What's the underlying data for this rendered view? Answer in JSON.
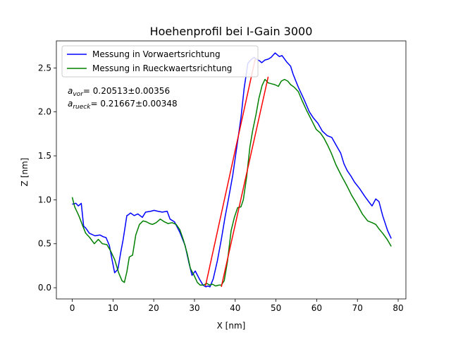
{
  "chart_data": {
    "type": "line",
    "title": "Hoehenprofil bei I-Gain  3000",
    "xlabel": "X [nm]",
    "ylabel": "Z [nm]",
    "xlim": [
      -3.9,
      81.9
    ],
    "ylim": [
      -0.1275,
      2.8075
    ],
    "xticks": [
      0,
      10,
      20,
      30,
      40,
      50,
      60,
      70,
      80
    ],
    "xtick_labels": [
      "0",
      "10",
      "20",
      "30",
      "40",
      "50",
      "60",
      "70",
      "80"
    ],
    "yticks": [
      0.0,
      0.5,
      1.0,
      1.5,
      2.0,
      2.5
    ],
    "ytick_labels": [
      "0.0",
      "0.5",
      "1.0",
      "1.5",
      "2.0",
      "2.5"
    ],
    "grid": false,
    "legend_position": "top-left",
    "series": [
      {
        "name": "Messung in Vorwaertsrichtung",
        "color": "#0000ff",
        "x": [
          0,
          0.9,
          1.5,
          2.2,
          2.8,
          3.3,
          4.2,
          5.6,
          6.8,
          7.6,
          8.3,
          9.1,
          9.8,
          10.4,
          11.2,
          11.9,
          12.5,
          13.0,
          13.4,
          13.8,
          14.3,
          15.2,
          16.1,
          17.2,
          18.0,
          19.3,
          20.1,
          21.0,
          22.1,
          23.3,
          24.0,
          25.1,
          26.4,
          27.7,
          28.6,
          29.4,
          30.2,
          31.2,
          32.1,
          32.8,
          33.3,
          33.8,
          34.6,
          35.6,
          36.6,
          37.5,
          38.3,
          39.4,
          40.3,
          41.4,
          42.2,
          43.1,
          43.8,
          44.6,
          45.2,
          46.0,
          46.5,
          47.3,
          48.1,
          48.8,
          49.8,
          50.8,
          51.5,
          52.6,
          53.6,
          54.2,
          55.5,
          56.9,
          58.2,
          59.2,
          60.3,
          61.4,
          62.6,
          63.7,
          64.8,
          65.9,
          66.7,
          67.5,
          68.4,
          69.3,
          70.5,
          71.8,
          72.9,
          73.6,
          74.5,
          75.3,
          76.2,
          77.4,
          78.3
        ],
        "y": [
          0.95,
          0.96,
          0.93,
          0.96,
          0.7,
          0.68,
          0.62,
          0.59,
          0.6,
          0.58,
          0.57,
          0.48,
          0.31,
          0.17,
          0.21,
          0.4,
          0.55,
          0.7,
          0.82,
          0.83,
          0.85,
          0.82,
          0.84,
          0.8,
          0.86,
          0.87,
          0.88,
          0.87,
          0.86,
          0.87,
          0.78,
          0.75,
          0.63,
          0.48,
          0.29,
          0.14,
          0.19,
          0.1,
          0.03,
          0.01,
          0.02,
          0.01,
          0.1,
          0.3,
          0.55,
          0.8,
          1.0,
          1.28,
          1.57,
          1.93,
          2.27,
          2.55,
          2.59,
          2.62,
          2.6,
          2.58,
          2.56,
          2.59,
          2.6,
          2.62,
          2.67,
          2.63,
          2.64,
          2.57,
          2.52,
          2.43,
          2.28,
          2.14,
          2.0,
          1.93,
          1.87,
          1.78,
          1.73,
          1.71,
          1.62,
          1.53,
          1.41,
          1.33,
          1.27,
          1.2,
          1.13,
          1.04,
          0.97,
          0.93,
          1.01,
          0.98,
          0.82,
          0.65,
          0.56
        ]
      },
      {
        "name": "Messung in Rueckwaertsrichtung",
        "color": "#008000",
        "x": [
          0,
          0.6,
          1.6,
          2.6,
          3.3,
          4.3,
          5.4,
          6.4,
          7.4,
          8.5,
          9.4,
          10.4,
          11.4,
          12.2,
          12.8,
          13.4,
          14.0,
          14.8,
          15.6,
          16.5,
          17.4,
          18.2,
          19.0,
          19.7,
          20.6,
          21.6,
          22.6,
          23.5,
          24.5,
          25.5,
          26.4,
          27.3,
          28.2,
          29.0,
          29.9,
          30.7,
          31.4,
          32.2,
          33.0,
          33.7,
          34.4,
          35.2,
          36.0,
          36.6,
          37.3,
          38.1,
          39.0,
          39.8,
          40.6,
          41.4,
          42.0,
          42.8,
          43.6,
          44.3,
          45.1,
          45.8,
          46.6,
          47.3,
          48.1,
          48.9,
          49.7,
          50.6,
          51.3,
          52.1,
          52.9,
          53.6,
          54.5,
          55.5,
          56.4,
          57.6,
          58.8,
          59.9,
          60.9,
          61.8,
          62.7,
          63.6,
          64.7,
          66.0,
          67.4,
          68.6,
          69.9,
          71.2,
          72.5,
          73.6,
          74.5,
          75.3,
          76.2,
          77.3,
          78.3
        ],
        "y": [
          1.03,
          0.92,
          0.82,
          0.7,
          0.62,
          0.57,
          0.5,
          0.55,
          0.5,
          0.49,
          0.42,
          0.32,
          0.17,
          0.08,
          0.06,
          0.18,
          0.35,
          0.37,
          0.6,
          0.72,
          0.76,
          0.75,
          0.73,
          0.72,
          0.74,
          0.78,
          0.75,
          0.73,
          0.74,
          0.72,
          0.66,
          0.54,
          0.39,
          0.22,
          0.14,
          0.06,
          0.03,
          0.03,
          0.05,
          0.03,
          0.04,
          0.02,
          0.03,
          0.03,
          0.08,
          0.3,
          0.65,
          0.8,
          0.91,
          0.92,
          1.0,
          1.26,
          1.6,
          1.79,
          1.97,
          2.15,
          2.3,
          2.37,
          2.33,
          2.32,
          2.31,
          2.29,
          2.35,
          2.37,
          2.35,
          2.31,
          2.28,
          2.23,
          2.13,
          2.01,
          1.9,
          1.8,
          1.76,
          1.7,
          1.62,
          1.53,
          1.4,
          1.28,
          1.16,
          1.05,
          0.95,
          0.84,
          0.76,
          0.74,
          0.72,
          0.67,
          0.62,
          0.55,
          0.47
        ]
      },
      {
        "name": "",
        "color": "#ff0000",
        "x": [
          32.7,
          44.9
        ],
        "y": [
          0.02,
          2.6
        ]
      },
      {
        "name": "",
        "color": "#ff0000",
        "x": [
          36.6,
          48.1
        ],
        "y": [
          0.01,
          2.4
        ]
      }
    ],
    "annotations": [
      {
        "main": "a",
        "sub": "vor",
        "text": "= 0.20513±0.00356"
      },
      {
        "main": "a",
        "sub": "rueck",
        "text": "= 0.21667±0.00348"
      }
    ]
  }
}
